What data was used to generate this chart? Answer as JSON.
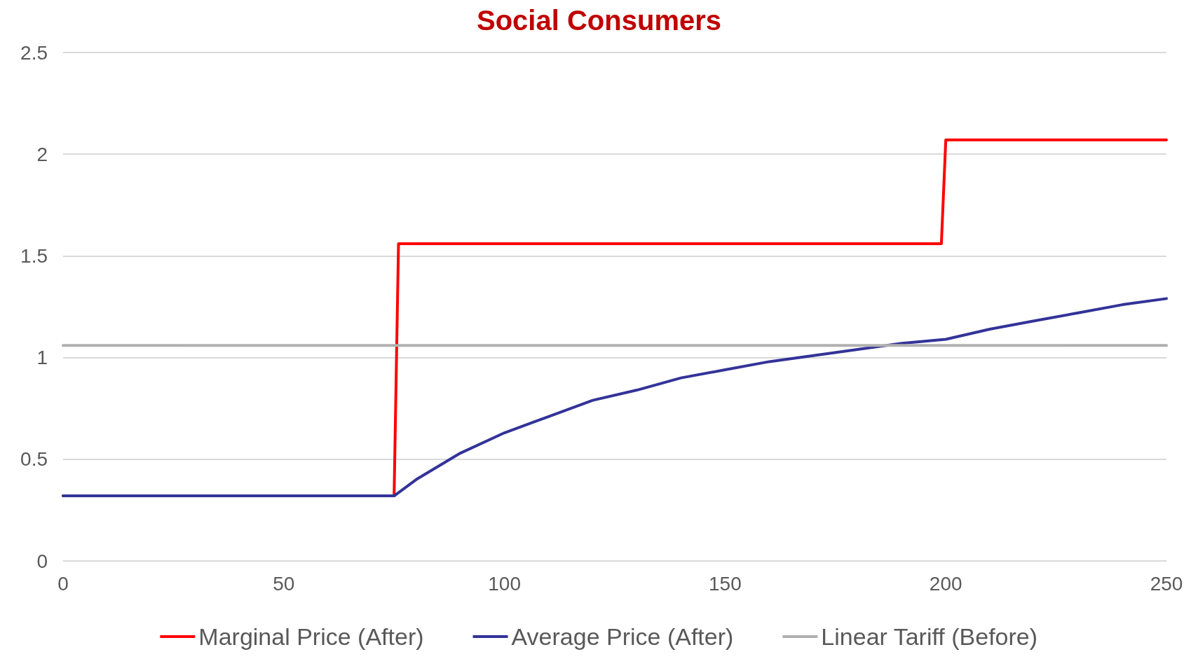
{
  "chart_data": {
    "type": "line",
    "title": "Social Consumers",
    "xlim": [
      0,
      250
    ],
    "xticks": [
      0,
      50,
      100,
      150,
      200,
      250
    ],
    "ylim": [
      0,
      2.5
    ],
    "yticks": [
      0,
      0.5,
      1,
      1.5,
      2,
      2.5
    ],
    "grid": "y",
    "legend": "bottom",
    "marker": "none",
    "line_style": "solid",
    "series": [
      {
        "name": "Marginal Price (After)",
        "color": "#ff0000",
        "x": [
          0,
          75,
          76,
          199,
          200,
          250
        ],
        "values": [
          0.32,
          0.32,
          1.56,
          1.56,
          2.07,
          2.07
        ]
      },
      {
        "name": "Average Price (After)",
        "color": "#333399",
        "x": [
          0,
          75,
          80,
          90,
          100,
          110,
          120,
          130,
          140,
          150,
          160,
          170,
          180,
          190,
          200,
          210,
          220,
          230,
          240,
          250
        ],
        "values": [
          0.32,
          0.32,
          0.4,
          0.53,
          0.63,
          0.71,
          0.79,
          0.84,
          0.9,
          0.94,
          0.98,
          1.01,
          1.04,
          1.07,
          1.09,
          1.14,
          1.18,
          1.22,
          1.26,
          1.29
        ]
      },
      {
        "name": "Linear Tariff (Before)",
        "color": "#b0b0b0",
        "x": [
          0,
          250
        ],
        "values": [
          1.06,
          1.06
        ]
      }
    ]
  }
}
